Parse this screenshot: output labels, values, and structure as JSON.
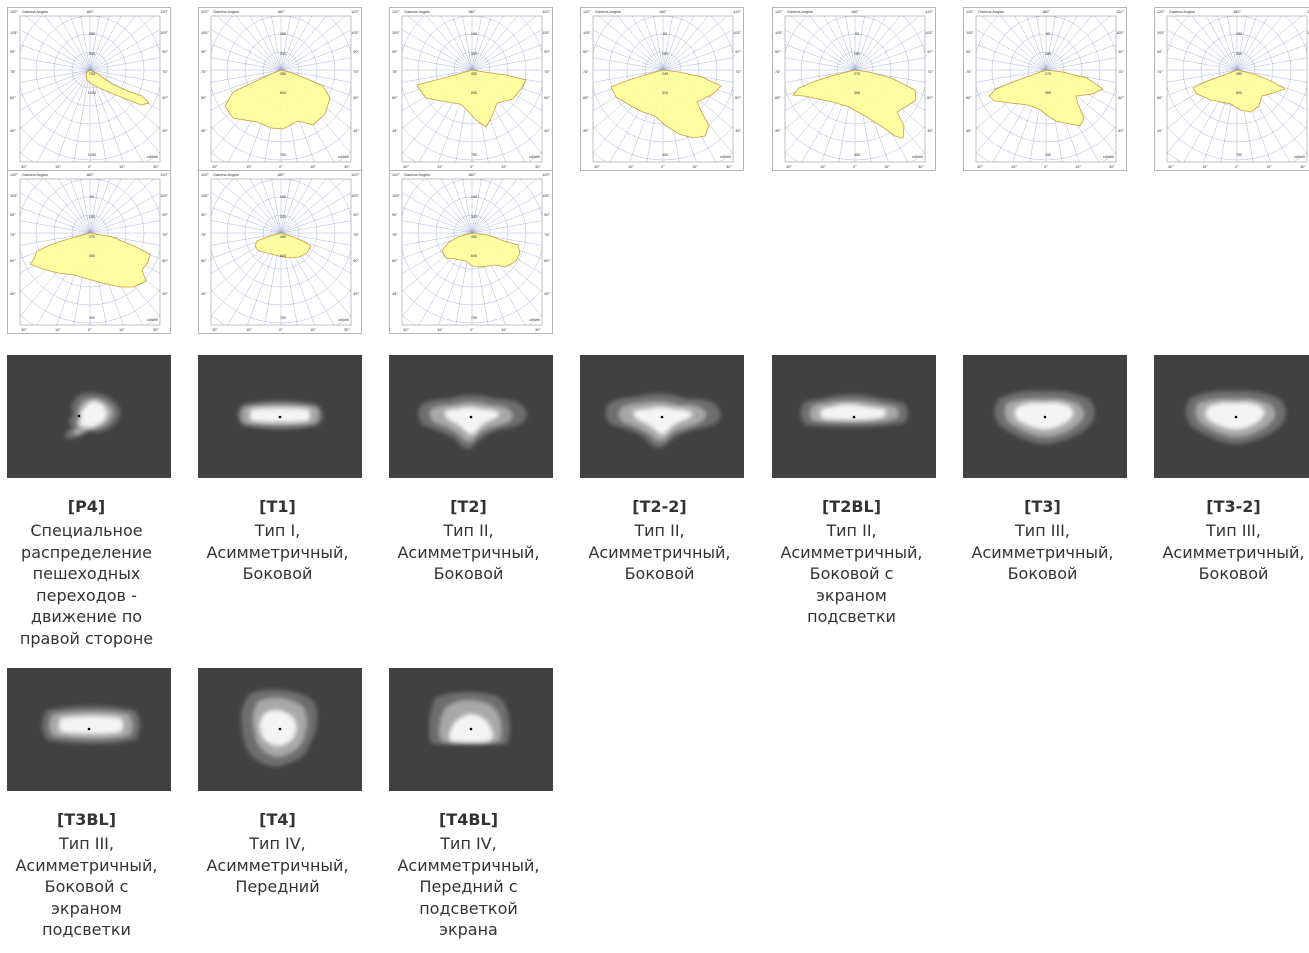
{
  "polar_labels": {
    "header": "Gamma Angles",
    "top_angle": "180°",
    "corner_angle": "120°",
    "side_angles": [
      "105°",
      "90°",
      "75°",
      "60°",
      "45°"
    ],
    "bottom_angles": [
      "30°",
      "15°",
      "0°",
      "15°",
      "30°"
    ],
    "unit": "cd/klm"
  },
  "colors": {
    "diagram_fill": "#ffff99",
    "diagram_stroke": "#c89030",
    "grid": "#8a96c8",
    "footprint_bg": "#414141"
  },
  "items": [
    {
      "code": "[P4]",
      "description": "Специальное\nраспределение\nпешеходных\nпереходов -\nдвижение по\nправой стороне",
      "scale_labels": [
        "250",
        "500",
        "750",
        "1000",
        "1250"
      ]
    },
    {
      "code": "[T1]",
      "description": "Тип I,\nАсимметричный,\nБоковой",
      "scale_labels": [
        "150",
        "300",
        "450",
        "600",
        "750"
      ]
    },
    {
      "code": "[T2]",
      "description": "Тип II,\nАсимметричный,\nБоковой",
      "scale_labels": [
        "150",
        "300",
        "450",
        "600",
        "750"
      ]
    },
    {
      "code": "[T2-2]",
      "description": "Тип II,\nАсимметричный,\nБоковой",
      "scale_labels": [
        "80",
        "160",
        "240",
        "320",
        "400"
      ]
    },
    {
      "code": "[T2BL]",
      "description": "Тип II,\nАсимметричный,\nБоковой с\nэкраном\nподсветки",
      "scale_labels": [
        "90",
        "180",
        "270",
        "360",
        "450"
      ]
    },
    {
      "code": "[T3]",
      "description": "Тип III,\nАсимметричный,\nБоковой",
      "scale_labels": [
        "90",
        "180",
        "270",
        "360",
        "450"
      ]
    },
    {
      "code": "[T3-2]",
      "description": "Тип III,\nАсимметричный,\nБоковой",
      "scale_labels": [
        "150",
        "300",
        "450",
        "600",
        "750"
      ]
    },
    {
      "code": "[T3BL]",
      "description": "Тип III,\nАсимметричный,\nБоковой с\nэкраном\nподсветки",
      "scale_labels": [
        "90",
        "180",
        "270",
        "360",
        "450"
      ]
    },
    {
      "code": "[T4]",
      "description": "Тип IV,\nАсимметричный,\nПередний",
      "scale_labels": [
        "150",
        "300",
        "450",
        "600",
        "750"
      ]
    },
    {
      "code": "[T4BL]",
      "description": "Тип IV,\nАсимметричный,\nПередний с\nподсветкой\nэкрана",
      "scale_labels": [
        "150",
        "300",
        "450",
        "600",
        "750"
      ]
    }
  ]
}
